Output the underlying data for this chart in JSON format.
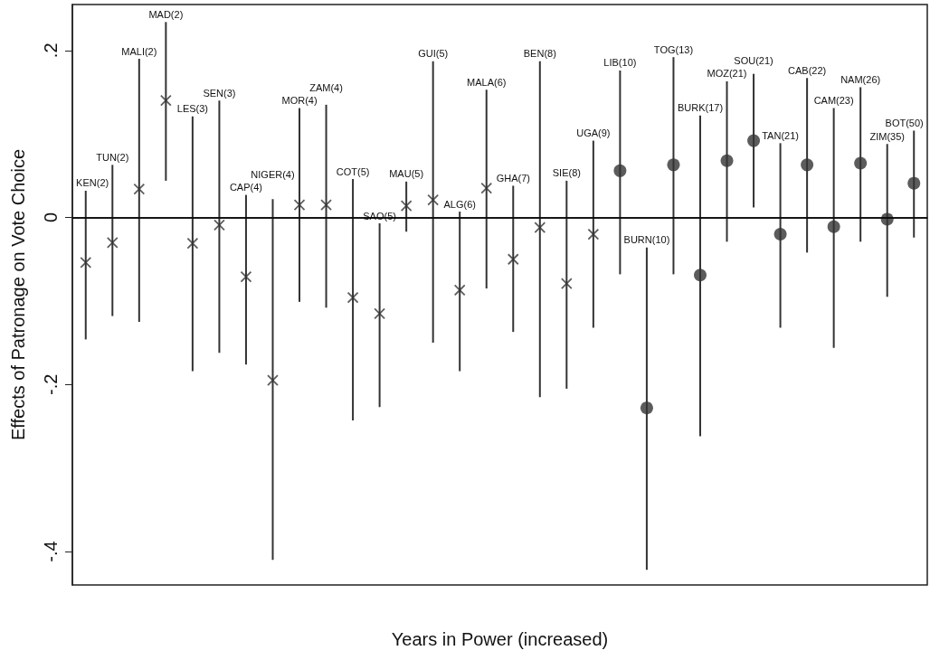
{
  "chart_data": {
    "type": "scatter",
    "xlabel": "Years in Power (increased)",
    "ylabel": "Effects of Patronage on Vote Choice",
    "categories": [
      "KEN(2)",
      "TUN(2)",
      "MALI(2)",
      "MAD(2)",
      "LES(3)",
      "SEN(3)",
      "CAP(4)",
      "NIGER(4)",
      "MOR(4)",
      "ZAM(4)",
      "COT(5)",
      "SAO(5)",
      "MAU(5)",
      "GUI(5)",
      "ALG(6)",
      "MALA(6)",
      "GHA(7)",
      "BEN(8)",
      "SIE(8)",
      "UGA(9)",
      "LIB(10)",
      "BURN(10)",
      "TOG(13)",
      "BURK(17)",
      "MOZ(21)",
      "SOU(21)",
      "TAN(21)",
      "CAB(22)",
      "CAM(23)",
      "NAM(26)",
      "ZIM(35)",
      "BOT(50)"
    ],
    "series": [
      {
        "color": "#333333",
        "marker": "cross",
        "values": [
          -0.054,
          -0.03,
          0.034,
          0.14,
          -0.031,
          -0.009,
          -0.071,
          -0.195,
          0.015,
          0.015,
          -0.096,
          -0.115,
          0.014,
          0.021,
          -0.087,
          0.035,
          -0.05,
          -0.012,
          -0.079,
          -0.02,
          null,
          null,
          null,
          null,
          null,
          null,
          null,
          null,
          null,
          null,
          null,
          null
        ],
        "errors": [
          [
            -0.146,
            0.032
          ],
          [
            -0.118,
            0.063
          ],
          [
            -0.125,
            0.19
          ],
          [
            0.044,
            0.234
          ],
          [
            -0.184,
            0.121
          ],
          [
            -0.162,
            0.14
          ],
          [
            -0.176,
            0.027
          ],
          [
            -0.41,
            0.022
          ],
          [
            -0.101,
            0.131
          ],
          [
            -0.108,
            0.135
          ],
          [
            -0.243,
            0.046
          ],
          [
            -0.227,
            -0.007
          ],
          [
            -0.017,
            0.043
          ],
          [
            -0.15,
            0.187
          ],
          [
            -0.184,
            0.007
          ],
          [
            -0.085,
            0.153
          ],
          [
            -0.137,
            0.038
          ],
          [
            -0.215,
            0.187
          ],
          [
            -0.205,
            0.044
          ],
          [
            -0.132,
            0.092
          ],
          null,
          null,
          null,
          null,
          null,
          null,
          null,
          null,
          null,
          null,
          null,
          null
        ]
      },
      {
        "color": "#333333",
        "marker": "circle",
        "values": [
          null,
          null,
          null,
          null,
          null,
          null,
          null,
          null,
          null,
          null,
          null,
          null,
          null,
          null,
          null,
          null,
          null,
          null,
          null,
          null,
          0.056,
          -0.228,
          0.063,
          -0.069,
          0.068,
          0.092,
          -0.02,
          0.063,
          -0.011,
          0.065,
          -0.002,
          0.041
        ],
        "errors": [
          null,
          null,
          null,
          null,
          null,
          null,
          null,
          null,
          null,
          null,
          null,
          null,
          null,
          null,
          null,
          null,
          null,
          null,
          null,
          null,
          [
            -0.068,
            0.176
          ],
          [
            -0.422,
            -0.036
          ],
          [
            -0.068,
            0.192
          ],
          [
            -0.262,
            0.122
          ],
          [
            -0.029,
            0.163
          ],
          [
            0.012,
            0.172
          ],
          [
            -0.132,
            0.089
          ],
          [
            -0.042,
            0.167
          ],
          [
            -0.156,
            0.131
          ],
          [
            -0.029,
            0.156
          ],
          [
            -0.095,
            0.088
          ],
          [
            -0.024,
            0.104
          ]
        ]
      }
    ],
    "ylim": [
      -0.44,
      0.255
    ],
    "yticks": [
      {
        "value": -0.4,
        "label": "-.4"
      },
      {
        "value": -0.2,
        "label": "-.2"
      },
      0,
      {
        "value": 0.2,
        "label": ".2"
      }
    ],
    "ref_lines": [
      {
        "axis": "y",
        "value": 0,
        "color": "#000000",
        "line_style": "solid"
      }
    ],
    "grid": false
  }
}
